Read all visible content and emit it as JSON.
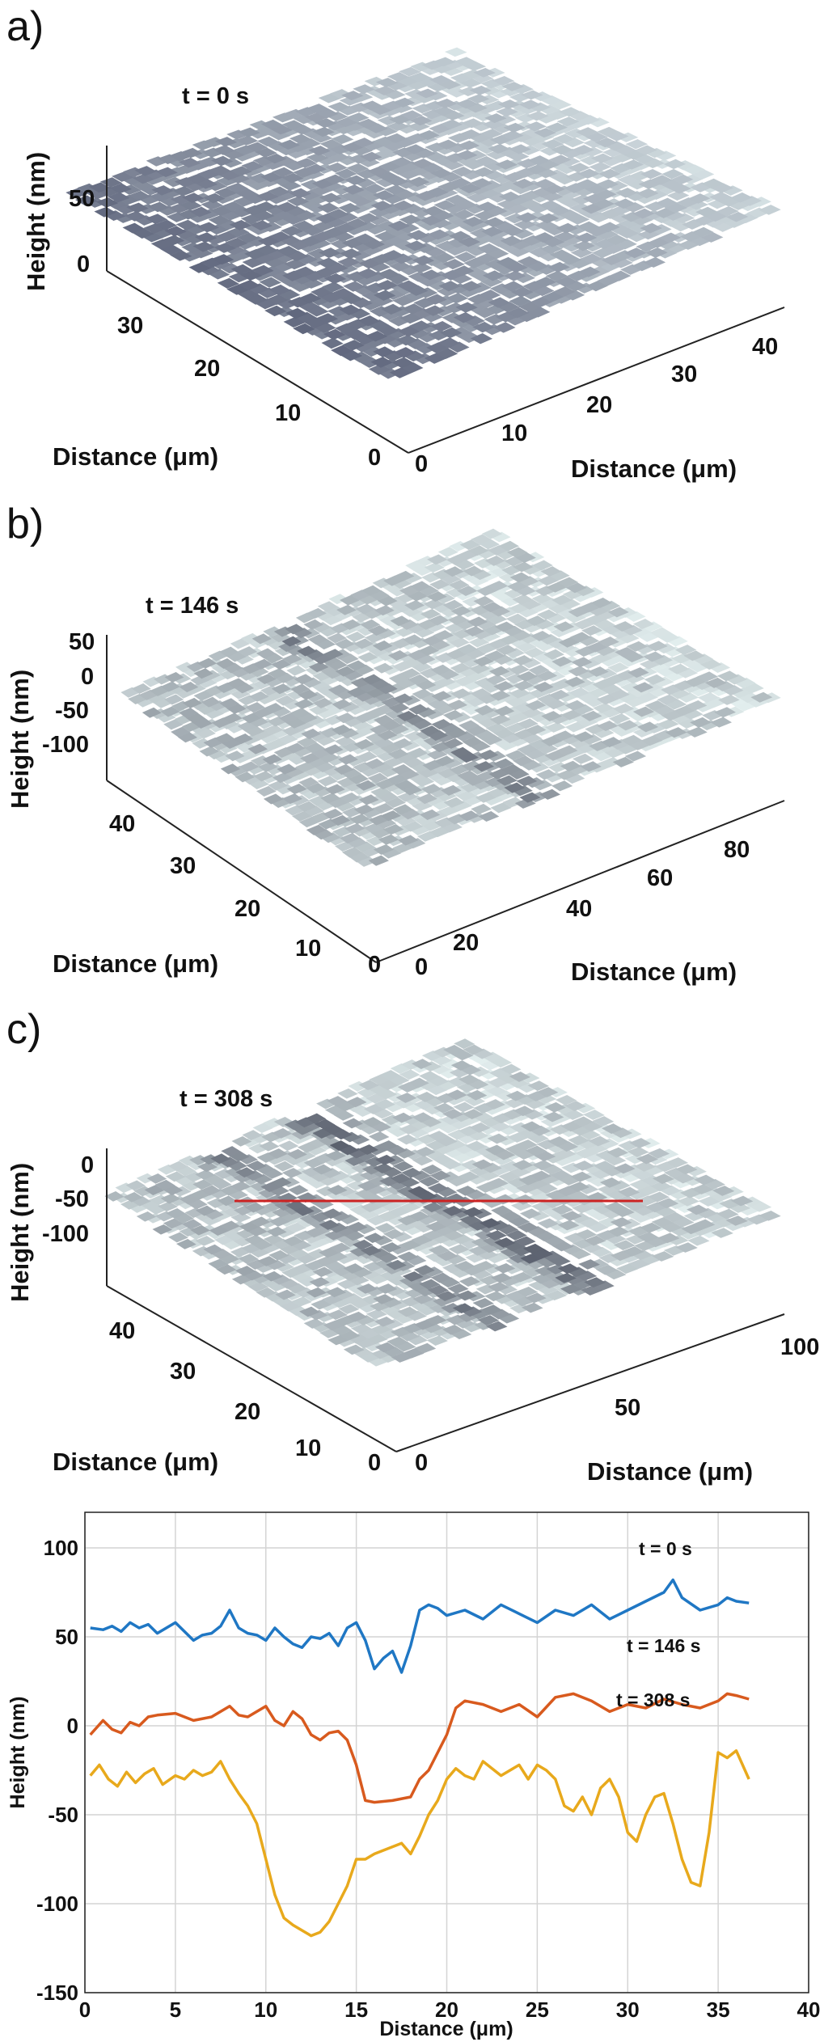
{
  "panels": [
    {
      "letter": "a)",
      "time_label": "t = 0 s",
      "z_axis_label": "Height (nm)",
      "z_ticks": [
        "50",
        "0"
      ],
      "y_axis_label": "Distance (μm)",
      "y_ticks": [
        "30",
        "20",
        "10",
        "0"
      ],
      "x_axis_label": "Distance (μm)",
      "x_ticks": [
        "0",
        "10",
        "20",
        "30",
        "40"
      ],
      "colors": {
        "low": "#3a3f5c",
        "high": "#e6f2f2"
      },
      "grooves": [],
      "shade": "dark"
    },
    {
      "letter": "b)",
      "time_label": "t = 146 s",
      "z_axis_label": "Height (nm)",
      "z_ticks": [
        "50",
        "0",
        "-50",
        "-100"
      ],
      "y_axis_label": "Distance (μm)",
      "y_ticks": [
        "40",
        "30",
        "20",
        "10",
        "0"
      ],
      "x_axis_label": "Distance (μm)",
      "x_ticks": [
        "0",
        "20",
        "40",
        "60",
        "80"
      ],
      "colors": {
        "low": "#1c1f33",
        "high": "#e2eeee"
      },
      "grooves": [
        0.42
      ],
      "shade": "light"
    },
    {
      "letter": "c)",
      "time_label": "t = 308 s",
      "z_axis_label": "Height (nm)",
      "z_ticks": [
        "0",
        "-50",
        "-100"
      ],
      "y_axis_label": "Distance (μm)",
      "y_ticks": [
        "40",
        "30",
        "20",
        "10",
        "0"
      ],
      "x_axis_label": "Distance (μm)",
      "x_ticks": [
        "0",
        "50",
        "100"
      ],
      "colors": {
        "low": "#1c1f33",
        "high": "#e2eeee",
        "profile_line": "#cc2222"
      },
      "grooves": [
        0.3,
        0.52,
        0.56
      ],
      "shade": "light"
    }
  ],
  "chart_data": {
    "type": "line",
    "xlabel": "Distance (μm)",
    "ylabel": "Height (nm)",
    "xlim": [
      0,
      40
    ],
    "ylim": [
      -150,
      120
    ],
    "x_ticks": [
      0,
      5,
      10,
      15,
      20,
      25,
      30,
      35,
      40
    ],
    "y_ticks": [
      -150,
      -100,
      -50,
      0,
      50,
      100
    ],
    "grid": true,
    "series": [
      {
        "name": "t = 0 s",
        "color": "#1f77c4",
        "x": [
          0.3,
          1,
          1.5,
          2,
          2.5,
          3,
          3.5,
          4,
          4.5,
          5,
          5.5,
          6,
          6.5,
          7,
          7.5,
          8,
          8.5,
          9,
          9.5,
          10,
          10.5,
          11,
          11.5,
          12,
          12.5,
          13,
          13.5,
          14,
          14.5,
          15,
          15.5,
          16,
          16.5,
          17,
          17.5,
          18,
          18.5,
          19,
          19.5,
          20,
          21,
          22,
          23,
          24,
          25,
          26,
          27,
          28,
          29,
          30,
          31,
          32,
          32.5,
          33,
          34,
          35,
          35.5,
          36,
          36.7
        ],
        "values": [
          55,
          54,
          56,
          53,
          58,
          55,
          57,
          52,
          55,
          58,
          53,
          48,
          51,
          52,
          56,
          65,
          55,
          52,
          51,
          48,
          55,
          50,
          46,
          44,
          50,
          49,
          52,
          45,
          55,
          58,
          48,
          32,
          38,
          42,
          30,
          45,
          65,
          68,
          66,
          62,
          65,
          60,
          68,
          63,
          58,
          65,
          62,
          68,
          60,
          65,
          70,
          75,
          82,
          72,
          65,
          68,
          72,
          70,
          69
        ]
      },
      {
        "name": "t = 146 s",
        "color": "#d85a1e",
        "x": [
          0.3,
          1,
          1.5,
          2,
          2.5,
          3,
          3.5,
          4,
          5,
          6,
          7,
          8,
          8.5,
          9,
          9.5,
          10,
          10.5,
          11,
          11.5,
          12,
          12.5,
          13,
          13.5,
          14,
          14.5,
          15,
          15.5,
          16,
          17,
          18,
          18.5,
          19,
          19.5,
          20,
          20.5,
          21,
          22,
          23,
          24,
          25,
          26,
          27,
          28,
          29,
          30,
          31,
          32,
          33,
          34,
          35,
          35.5,
          36,
          36.7
        ],
        "values": [
          -5,
          3,
          -2,
          -4,
          2,
          0,
          5,
          6,
          7,
          3,
          5,
          11,
          6,
          5,
          8,
          11,
          3,
          0,
          8,
          4,
          -5,
          -8,
          -4,
          -3,
          -8,
          -22,
          -42,
          -43,
          -42,
          -40,
          -30,
          -25,
          -15,
          -5,
          10,
          14,
          12,
          8,
          12,
          5,
          16,
          18,
          14,
          8,
          12,
          10,
          15,
          12,
          10,
          14,
          18,
          17,
          15
        ]
      },
      {
        "name": "t = 308 s",
        "color": "#e8a91c",
        "x": [
          0.3,
          0.8,
          1.3,
          1.8,
          2.3,
          2.8,
          3.3,
          3.8,
          4.3,
          5,
          5.5,
          6,
          6.5,
          7,
          7.5,
          8,
          8.5,
          9,
          9.5,
          10,
          10.5,
          11,
          11.5,
          12,
          12.5,
          13,
          13.5,
          14,
          14.5,
          15,
          15.5,
          16,
          16.5,
          17,
          17.5,
          18,
          18.5,
          19,
          19.5,
          20,
          20.5,
          21,
          21.5,
          22,
          22.5,
          23,
          23.5,
          24,
          24.5,
          25,
          25.5,
          26,
          26.5,
          27,
          27.5,
          28,
          28.5,
          29,
          29.5,
          30,
          30.5,
          31,
          31.5,
          32,
          32.5,
          33,
          33.5,
          34,
          34.5,
          35,
          35.5,
          36,
          36.7
        ],
        "values": [
          -28,
          -22,
          -30,
          -34,
          -26,
          -32,
          -27,
          -24,
          -33,
          -28,
          -30,
          -25,
          -28,
          -26,
          -20,
          -30,
          -38,
          -45,
          -55,
          -75,
          -95,
          -108,
          -112,
          -115,
          -118,
          -116,
          -110,
          -100,
          -90,
          -75,
          -75,
          -72,
          -70,
          -68,
          -66,
          -72,
          -62,
          -50,
          -42,
          -30,
          -24,
          -28,
          -30,
          -20,
          -24,
          -28,
          -25,
          -22,
          -30,
          -22,
          -25,
          -30,
          -45,
          -48,
          -40,
          -50,
          -35,
          -30,
          -40,
          -60,
          -65,
          -50,
          -40,
          -38,
          -55,
          -75,
          -88,
          -90,
          -60,
          -15,
          -18,
          -14,
          -30
        ]
      }
    ],
    "annotations": [
      "t = 0 s",
      "t = 146 s",
      "t = 308 s"
    ]
  }
}
